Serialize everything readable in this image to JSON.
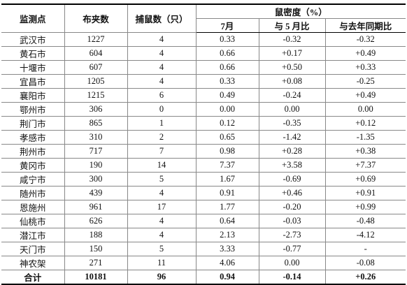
{
  "table": {
    "header": [
      "监测点",
      "布夹数",
      "捕鼠数（只）",
      "鼠密度（%）"
    ],
    "subheader": [
      "7月",
      "与 5 月比",
      "与去年同期比"
    ],
    "rows": [
      [
        "武汉市",
        "1227",
        "4",
        "0.33",
        "-0.32",
        "-0.32"
      ],
      [
        "黄石市",
        "604",
        "4",
        "0.66",
        "+0.17",
        "+0.49"
      ],
      [
        "十堰市",
        "607",
        "4",
        "0.66",
        "+0.50",
        "+0.33"
      ],
      [
        "宜昌市",
        "1205",
        "4",
        "0.33",
        "+0.08",
        "-0.25"
      ],
      [
        "襄阳市",
        "1215",
        "6",
        "0.49",
        "-0.24",
        "+0.49"
      ],
      [
        "鄂州市",
        "306",
        "0",
        "0.00",
        "0.00",
        "0.00"
      ],
      [
        "荆门市",
        "865",
        "1",
        "0.12",
        "-0.35",
        "+0.12"
      ],
      [
        "孝感市",
        "310",
        "2",
        "0.65",
        "-1.42",
        "-1.35"
      ],
      [
        "荆州市",
        "717",
        "7",
        "0.98",
        "+0.28",
        "+0.38"
      ],
      [
        "黄冈市",
        "190",
        "14",
        "7.37",
        "+3.58",
        "+7.37"
      ],
      [
        "咸宁市",
        "300",
        "5",
        "1.67",
        "-0.69",
        "+0.69"
      ],
      [
        "随州市",
        "439",
        "4",
        "0.91",
        "+0.46",
        "+0.91"
      ],
      [
        "恩施州",
        "961",
        "17",
        "1.77",
        "-0.20",
        "+0.99"
      ],
      [
        "仙桃市",
        "626",
        "4",
        "0.64",
        "-0.03",
        "-0.48"
      ],
      [
        "潜江市",
        "188",
        "4",
        "2.13",
        "-2.73",
        "-4.12"
      ],
      [
        "天门市",
        "150",
        "5",
        "3.33",
        "-0.77",
        "-"
      ],
      [
        "神农架",
        "271",
        "11",
        "4.06",
        "0.00",
        "-0.08"
      ]
    ],
    "total": [
      "合计",
      "10181",
      "96",
      "0.94",
      "-0.14",
      "+0.26"
    ]
  }
}
